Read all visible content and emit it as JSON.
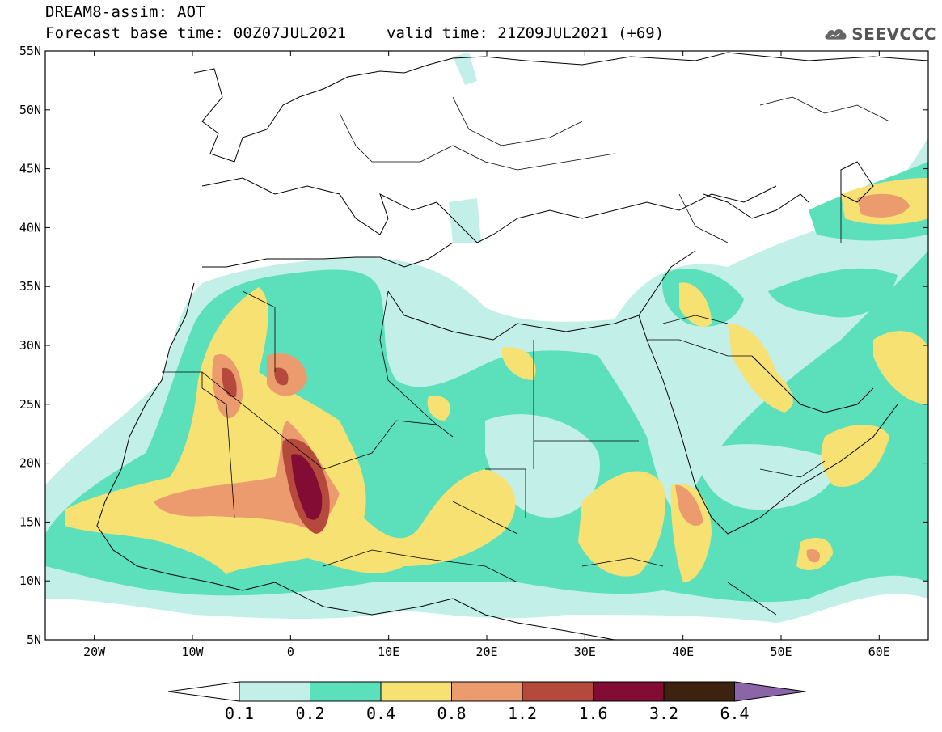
{
  "header": {
    "title": "DREAM8-assim: AOT",
    "base_time": "Forecast base time: 00Z07JUL2021",
    "valid_time": "valid time: 21Z09JUL2021 (+69)",
    "logo_text": "SEEVCCC"
  },
  "map": {
    "lon_range": [
      -25,
      65
    ],
    "lat_range": [
      5,
      55
    ],
    "lat_ticks": [
      "55N",
      "50N",
      "45N",
      "40N",
      "35N",
      "30N",
      "25N",
      "20N",
      "15N",
      "10N",
      "5N"
    ],
    "lon_ticks": [
      "20W",
      "10W",
      "0",
      "10E",
      "20E",
      "30E",
      "40E",
      "50E",
      "60E"
    ]
  },
  "colorbar": {
    "labels": [
      "0.1",
      "0.2",
      "0.4",
      "0.8",
      "1.2",
      "1.6",
      "3.2",
      "6.4"
    ],
    "colors": [
      "#ffffff",
      "#c2f0e8",
      "#5ce0bc",
      "#f7e173",
      "#eb9b6e",
      "#b54a3c",
      "#820c34",
      "#3c220f",
      "#8a66a8"
    ]
  }
}
